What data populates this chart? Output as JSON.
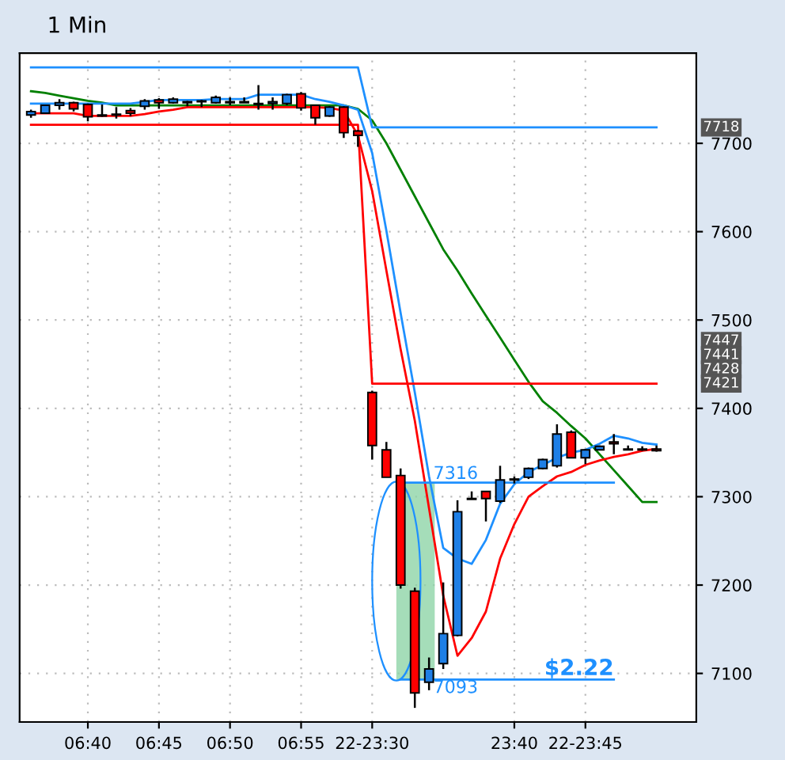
{
  "chart_data": {
    "type": "candlestick",
    "title": "1 Min",
    "categories": [
      null,
      null,
      null,
      null,
      "06:40",
      null,
      null,
      null,
      null,
      "06:45",
      null,
      null,
      null,
      null,
      "06:50",
      null,
      null,
      null,
      null,
      "06:55",
      null,
      null,
      null,
      null,
      "22-23:30",
      null,
      null,
      null,
      null,
      null,
      null,
      null,
      null,
      null,
      "23:40",
      null,
      null,
      null,
      null,
      "22-23:45",
      null,
      null,
      null,
      null,
      null
    ],
    "ohlc": [
      [
        7732,
        7738,
        7729,
        7736
      ],
      [
        7734,
        7743,
        7734,
        7743
      ],
      [
        7743,
        7750,
        7738,
        7746
      ],
      [
        7746,
        7747,
        7736,
        7739
      ],
      [
        7744,
        7745,
        7725,
        7730
      ],
      [
        7732,
        7744,
        7730,
        7731
      ],
      [
        7732,
        7741,
        7728,
        7733
      ],
      [
        7737,
        7740,
        7731,
        7734
      ],
      [
        7742,
        7750,
        7738,
        7748
      ],
      [
        7749,
        7751,
        7739,
        7746
      ],
      [
        7746,
        7752,
        7745,
        7750
      ],
      [
        7747,
        7748,
        7742,
        7746
      ],
      [
        7747,
        7749,
        7741,
        7748
      ],
      [
        7746,
        7754,
        7745,
        7752
      ],
      [
        7747,
        7752,
        7743,
        7746
      ],
      [
        7746,
        7752,
        7746,
        7747
      ],
      [
        7744,
        7766,
        7738,
        7745
      ],
      [
        7745,
        7752,
        7738,
        7747
      ],
      [
        7745,
        7756,
        7743,
        7755
      ],
      [
        7756,
        7758,
        7737,
        7740
      ],
      [
        7743,
        7744,
        7721,
        7729
      ],
      [
        7731,
        7742,
        7730,
        7741
      ],
      [
        7741,
        7742,
        7706,
        7712
      ],
      [
        7714,
        7715,
        7696,
        7709
      ],
      [
        7418,
        7420,
        7342,
        7358
      ],
      [
        7353,
        7362,
        7322,
        7322
      ],
      [
        7324,
        7332,
        7196,
        7200
      ],
      [
        7193,
        7197,
        7061,
        7078
      ],
      [
        7090,
        7118,
        7081,
        7105
      ],
      [
        7111,
        7203,
        7105,
        7145
      ],
      [
        7143,
        7296,
        7142,
        7283
      ],
      [
        7297,
        7306,
        7297,
        7298
      ],
      [
        7306,
        7306,
        7272,
        7298
      ],
      [
        7295,
        7335,
        7293,
        7319
      ],
      [
        7319,
        7323,
        7315,
        7320
      ],
      [
        7322,
        7333,
        7320,
        7332
      ],
      [
        7332,
        7343,
        7331,
        7342
      ],
      [
        7335,
        7382,
        7333,
        7371
      ],
      [
        7373,
        7375,
        7344,
        7344
      ],
      [
        7344,
        7354,
        7337,
        7353
      ],
      [
        7353,
        7358,
        7353,
        7357
      ],
      [
        7362,
        7371,
        7348,
        7360
      ],
      [
        7353,
        7358,
        7353,
        7354
      ],
      [
        7353,
        7357,
        7352,
        7354
      ],
      [
        7354,
        7358,
        7351,
        7352
      ]
    ],
    "colors": [
      "#1e7fe6",
      "#1e7fe6",
      "#1e7fe6",
      "#ff0000",
      "#ff0000",
      "#ff0000",
      "#1e7fe6",
      "#ff0000",
      "#1e7fe6",
      "#ff0000",
      "#1e7fe6",
      "#ff0000",
      "#1e7fe6",
      "#1e7fe6",
      "#ff0000",
      "#1e7fe6",
      "#1e7fe6",
      "#1e7fe6",
      "#1e7fe6",
      "#ff0000",
      "#ff0000",
      "#1e7fe6",
      "#ff0000",
      "#ff0000",
      "#ff0000",
      "#ff0000",
      "#ff0000",
      "#ff0000",
      "#1e7fe6",
      "#1e7fe6",
      "#1e7fe6",
      "#1e7fe6",
      "#ff0000",
      "#1e7fe6",
      "#1e7fe6",
      "#1e7fe6",
      "#1e7fe6",
      "#1e7fe6",
      "#ff0000",
      "#1e7fe6",
      "#1e7fe6",
      "#ff0000",
      "#1e7fe6",
      "#1e7fe6",
      "#ff0000"
    ],
    "series": [
      {
        "type": "line",
        "color": "#008000",
        "values": [
          7759,
          7757,
          7754,
          7751,
          7748,
          7746,
          7743,
          7743,
          7743,
          7743,
          7743,
          7743,
          7743,
          7743,
          7743,
          7743,
          7743,
          7743,
          7743,
          7743,
          7743,
          7743,
          7743,
          7739,
          7726,
          7700,
          7670,
          7640,
          7610,
          7580,
          7556,
          7530,
          7505,
          7480,
          7455,
          7430,
          7408,
          7395,
          7380,
          7366,
          7348,
          7330,
          7312,
          7294,
          7294
        ]
      },
      {
        "type": "line",
        "color": "#1e90ff",
        "values": [
          7745,
          7745,
          7745,
          7745,
          7745,
          7745,
          7745,
          7745,
          7747,
          7749,
          7749,
          7749,
          7749,
          7750,
          7750,
          7750,
          7755,
          7755,
          7755,
          7755,
          7750,
          7747,
          7743,
          7738,
          7689,
          7601,
          7508,
          7418,
          7323,
          7242,
          7230,
          7224,
          7251,
          7292,
          7314,
          7328,
          7336,
          7344,
          7350,
          7353,
          7360,
          7369,
          7366,
          7361,
          7359
        ]
      },
      {
        "type": "line",
        "color": "#ff0000",
        "values": [
          7734,
          7734,
          7734,
          7734,
          7731,
          7731,
          7731,
          7731,
          7733,
          7736,
          7738,
          7741,
          7741,
          7741,
          7741,
          7741,
          7741,
          7741,
          7741,
          7741,
          7741,
          7740,
          7737,
          7709,
          7646,
          7556,
          7467,
          7386,
          7287,
          7188,
          7120,
          7140,
          7170,
          7230,
          7269,
          7300,
          7312,
          7323,
          7328,
          7336,
          7341,
          7345,
          7348,
          7352,
          7354
        ]
      },
      {
        "type": "line",
        "color": "#1e90ff",
        "values": [
          7786,
          7786,
          7786,
          7786,
          7786,
          7786,
          7786,
          7786,
          7786,
          7786,
          7786,
          7786,
          7786,
          7786,
          7786,
          7786,
          7786,
          7786,
          7786,
          7786,
          7786,
          7786,
          7786,
          7786,
          7718,
          7718,
          7718,
          7718,
          7718,
          7718,
          7718,
          7718,
          7718,
          7718,
          7718,
          7718,
          7718,
          7718,
          7718,
          7718,
          7718,
          7718,
          7718,
          7718,
          7718
        ]
      },
      {
        "type": "line",
        "color": "#ff0000",
        "values": [
          7721,
          7721,
          7721,
          7721,
          7721,
          7721,
          7721,
          7721,
          7721,
          7721,
          7721,
          7721,
          7721,
          7721,
          7721,
          7721,
          7721,
          7721,
          7721,
          7721,
          7721,
          7721,
          7721,
          7721,
          7428,
          7428,
          7428,
          7428,
          7428,
          7428,
          7428,
          7428,
          7428,
          7428,
          7428,
          7428,
          7428,
          7428,
          7428,
          7428,
          7428,
          7428,
          7428,
          7428,
          7428
        ]
      },
      {
        "type": "line",
        "color": "#1e90ff",
        "values": [
          null,
          null,
          null,
          null,
          null,
          null,
          null,
          null,
          null,
          null,
          null,
          null,
          null,
          null,
          null,
          null,
          null,
          null,
          null,
          null,
          null,
          null,
          null,
          null,
          null,
          null,
          7316,
          7316,
          7316,
          7316,
          7316,
          7316,
          7316,
          7316,
          7316,
          7316,
          7316,
          7316,
          7316,
          7316,
          7316,
          7316,
          null,
          null,
          null
        ]
      },
      {
        "type": "line",
        "color": "#1e90ff",
        "values": [
          null,
          null,
          null,
          null,
          null,
          null,
          null,
          null,
          null,
          null,
          null,
          null,
          null,
          null,
          null,
          null,
          null,
          null,
          null,
          null,
          null,
          null,
          null,
          null,
          null,
          null,
          7093,
          7093,
          7093,
          7093,
          7093,
          7093,
          7093,
          7093,
          7093,
          7093,
          7093,
          7093,
          7093,
          7093,
          7093,
          7093,
          null,
          null,
          null
        ]
      }
    ],
    "annotations": [
      {
        "text": "7316",
        "y": 7316
      },
      {
        "text": "7093",
        "y": 7093
      },
      {
        "text": "$2.22",
        "y": 7093
      },
      "7718",
      "7447",
      "7441",
      "7428",
      "7421"
    ],
    "ylim": [
      7045,
      7802
    ],
    "yticks": [
      7100,
      7200,
      7300,
      7400,
      7500,
      7600,
      7700
    ],
    "grid": true
  }
}
